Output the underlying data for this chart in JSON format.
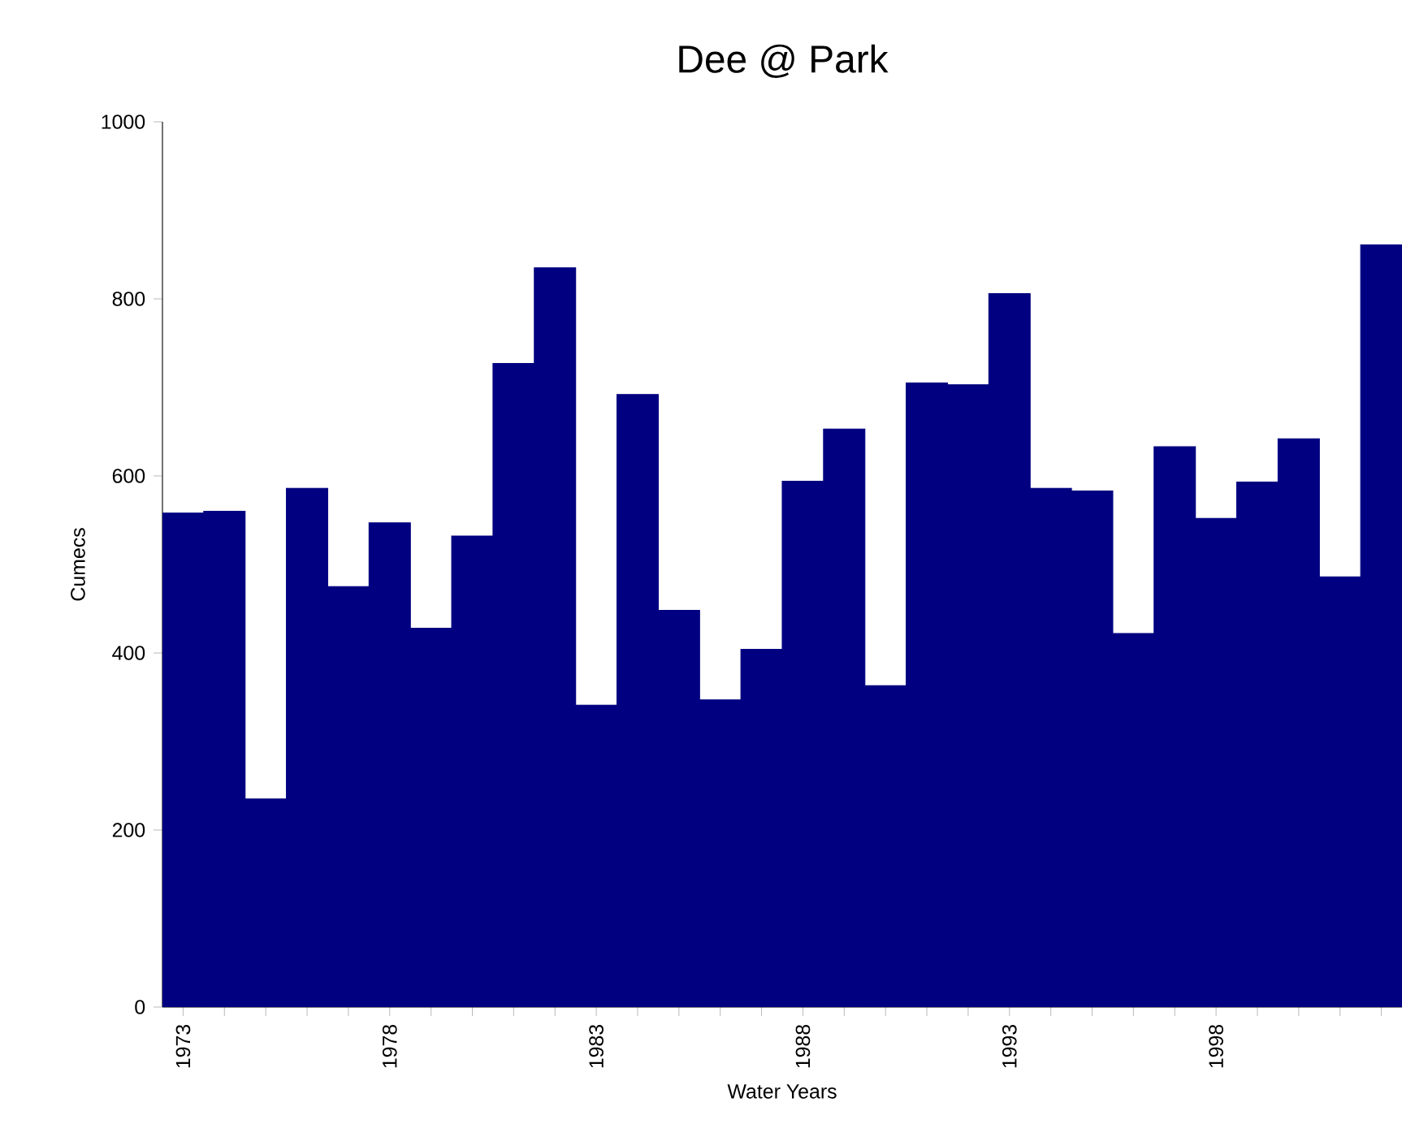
{
  "chart_data": {
    "type": "bar",
    "title": "Dee @ Park",
    "xlabel": "Water Years",
    "ylabel": "Cumecs",
    "categories": [
      "1973",
      null,
      null,
      null,
      null,
      "1978",
      null,
      null,
      null,
      null,
      "1983",
      null,
      null,
      null,
      null,
      "1988",
      null,
      null,
      null,
      null,
      "1993",
      null,
      null,
      null,
      null,
      "1998",
      null,
      null,
      null,
      null
    ],
    "values": [
      558,
      560,
      235,
      586,
      475,
      547,
      428,
      532,
      727,
      835,
      341,
      692,
      448,
      347,
      404,
      594,
      653,
      363,
      705,
      703,
      806,
      586,
      583,
      422,
      633,
      552,
      593,
      642,
      486,
      861
    ],
    "color": "#000080",
    "ylim": [
      0,
      1000
    ],
    "yticks": [
      0,
      200,
      400,
      600,
      800,
      1000
    ],
    "grid": false
  }
}
